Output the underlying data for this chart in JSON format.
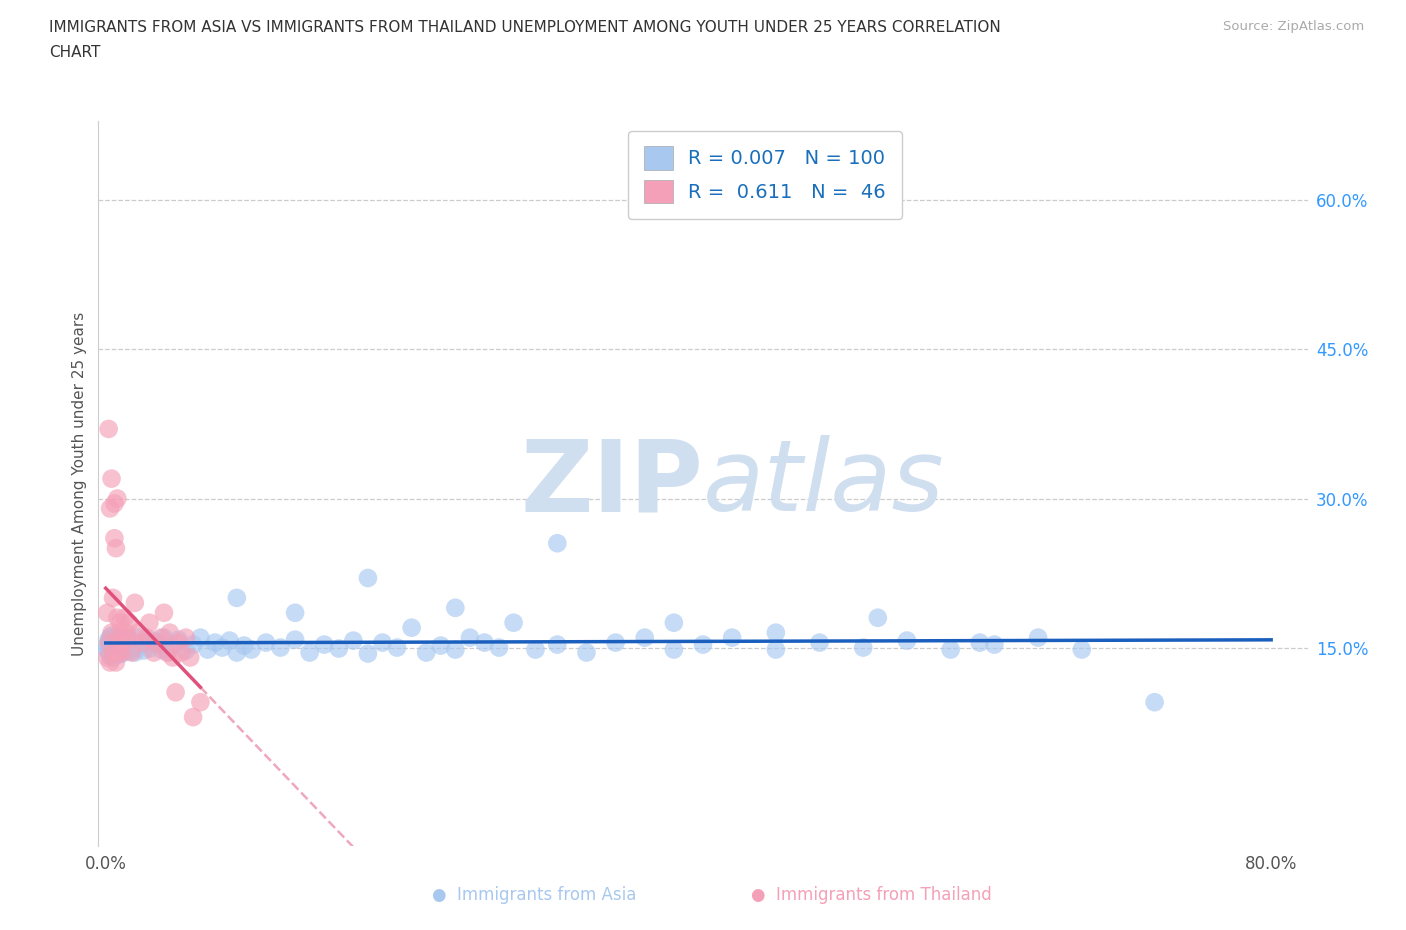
{
  "title_line1": "IMMIGRANTS FROM ASIA VS IMMIGRANTS FROM THAILAND UNEMPLOYMENT AMONG YOUTH UNDER 25 YEARS CORRELATION",
  "title_line2": "CHART",
  "source": "Source: ZipAtlas.com",
  "ylabel": "Unemployment Among Youth under 25 years",
  "xlim_min": -0.005,
  "xlim_max": 0.825,
  "ylim_min": -0.05,
  "ylim_max": 0.68,
  "color_asia": "#a8c8f0",
  "color_thailand": "#f4a0b8",
  "trendline_asia_color": "#1a5fbd",
  "trendline_thailand_color": "#e0507a",
  "legend_R_asia": "0.007",
  "legend_N_asia": "100",
  "legend_R_thailand": "0.611",
  "legend_N_thailand": "46",
  "watermark_zip": "ZIP",
  "watermark_atlas": "atlas",
  "watermark_color": "#d0dff0",
  "ytick_vals": [
    0.15,
    0.3,
    0.45,
    0.6
  ],
  "ytick_labels": [
    "15.0%",
    "30.0%",
    "45.0%",
    "60.0%"
  ],
  "xtick_vals": [
    0.0,
    0.1,
    0.2,
    0.3,
    0.4,
    0.5,
    0.6,
    0.7,
    0.8
  ],
  "xtick_labels": [
    "0.0%",
    "",
    "",
    "",
    "",
    "",
    "",
    "",
    "80.0%"
  ],
  "asia_x": [
    0.001,
    0.001,
    0.002,
    0.002,
    0.003,
    0.003,
    0.003,
    0.004,
    0.004,
    0.004,
    0.005,
    0.005,
    0.005,
    0.006,
    0.006,
    0.007,
    0.007,
    0.008,
    0.008,
    0.009,
    0.009,
    0.01,
    0.01,
    0.011,
    0.011,
    0.012,
    0.013,
    0.014,
    0.015,
    0.016,
    0.017,
    0.018,
    0.019,
    0.02,
    0.022,
    0.024,
    0.026,
    0.028,
    0.03,
    0.033,
    0.035,
    0.038,
    0.04,
    0.043,
    0.045,
    0.05,
    0.055,
    0.06,
    0.065,
    0.07,
    0.075,
    0.08,
    0.085,
    0.09,
    0.095,
    0.1,
    0.11,
    0.12,
    0.13,
    0.14,
    0.15,
    0.16,
    0.17,
    0.18,
    0.19,
    0.2,
    0.21,
    0.22,
    0.23,
    0.24,
    0.25,
    0.26,
    0.27,
    0.28,
    0.295,
    0.31,
    0.33,
    0.35,
    0.37,
    0.39,
    0.41,
    0.43,
    0.46,
    0.49,
    0.52,
    0.55,
    0.58,
    0.61,
    0.64,
    0.67,
    0.09,
    0.13,
    0.18,
    0.24,
    0.31,
    0.39,
    0.46,
    0.53,
    0.6,
    0.72
  ],
  "asia_y": [
    0.148,
    0.152,
    0.145,
    0.158,
    0.142,
    0.16,
    0.155,
    0.147,
    0.153,
    0.162,
    0.14,
    0.156,
    0.15,
    0.143,
    0.158,
    0.146,
    0.154,
    0.148,
    0.16,
    0.143,
    0.155,
    0.149,
    0.157,
    0.144,
    0.16,
    0.15,
    0.147,
    0.153,
    0.158,
    0.146,
    0.152,
    0.148,
    0.156,
    0.145,
    0.16,
    0.153,
    0.147,
    0.155,
    0.149,
    0.157,
    0.153,
    0.148,
    0.16,
    0.145,
    0.152,
    0.158,
    0.147,
    0.153,
    0.16,
    0.148,
    0.155,
    0.15,
    0.157,
    0.145,
    0.152,
    0.148,
    0.155,
    0.15,
    0.158,
    0.145,
    0.153,
    0.149,
    0.157,
    0.144,
    0.155,
    0.15,
    0.17,
    0.145,
    0.152,
    0.148,
    0.16,
    0.155,
    0.15,
    0.175,
    0.148,
    0.153,
    0.145,
    0.155,
    0.16,
    0.148,
    0.153,
    0.16,
    0.148,
    0.155,
    0.15,
    0.157,
    0.148,
    0.153,
    0.16,
    0.148,
    0.2,
    0.185,
    0.22,
    0.19,
    0.255,
    0.175,
    0.165,
    0.18,
    0.155,
    0.095
  ],
  "thailand_x": [
    0.001,
    0.001,
    0.002,
    0.002,
    0.003,
    0.003,
    0.004,
    0.004,
    0.005,
    0.005,
    0.006,
    0.006,
    0.007,
    0.007,
    0.008,
    0.008,
    0.009,
    0.009,
    0.01,
    0.01,
    0.011,
    0.012,
    0.013,
    0.014,
    0.015,
    0.016,
    0.018,
    0.02,
    0.022,
    0.025,
    0.028,
    0.03,
    0.033,
    0.035,
    0.038,
    0.04,
    0.042,
    0.044,
    0.046,
    0.048,
    0.05,
    0.052,
    0.055,
    0.058,
    0.06,
    0.065
  ],
  "thailand_y": [
    0.185,
    0.14,
    0.155,
    0.37,
    0.29,
    0.135,
    0.32,
    0.165,
    0.2,
    0.145,
    0.26,
    0.295,
    0.135,
    0.25,
    0.18,
    0.3,
    0.145,
    0.155,
    0.165,
    0.175,
    0.145,
    0.155,
    0.18,
    0.165,
    0.16,
    0.175,
    0.145,
    0.195,
    0.165,
    0.155,
    0.16,
    0.175,
    0.145,
    0.155,
    0.16,
    0.185,
    0.145,
    0.165,
    0.14,
    0.105,
    0.155,
    0.145,
    0.16,
    0.14,
    0.08,
    0.095
  ]
}
